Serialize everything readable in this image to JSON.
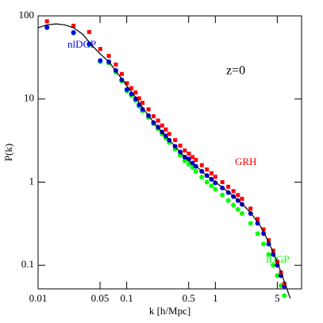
{
  "chart_data": {
    "type": "scatter",
    "xlabel": "k [h/Mpc]",
    "ylabel": "P(k)",
    "annotations": [
      "z=0"
    ],
    "xscale": "log",
    "yscale": "log",
    "xlim": [
      0.01,
      9.4
    ],
    "ylim": [
      0.052,
      100
    ],
    "xticks": [
      0.01,
      0.05,
      0.1,
      0.5,
      1,
      5
    ],
    "yticks": [
      0.1,
      1,
      10,
      100
    ],
    "series": [
      {
        "color": "#000000",
        "marker": "line",
        "x": [
          0.01,
          0.0126,
          0.016,
          0.02,
          0.025,
          0.032,
          0.04,
          0.05,
          0.063,
          0.08,
          0.1,
          0.126,
          0.16,
          0.2,
          0.25,
          0.32,
          0.4,
          0.5,
          0.63,
          0.8,
          1,
          1.26,
          1.6,
          2,
          2.5,
          3.2,
          4,
          5,
          6.3,
          7
        ],
        "values": [
          72,
          78,
          80,
          78,
          72,
          60,
          45,
          35,
          28,
          20,
          14.5,
          10.5,
          7.2,
          5.3,
          4.0,
          3.0,
          2.3,
          1.8,
          1.5,
          1.2,
          1.0,
          0.83,
          0.68,
          0.55,
          0.43,
          0.3,
          0.19,
          0.11,
          0.055,
          0.04
        ]
      },
      {
        "name": "GRH",
        "color": "#ff0000",
        "marker": "square",
        "x": [
          0.0126,
          0.0251,
          0.0377,
          0.0503,
          0.0628,
          0.0754,
          0.088,
          0.1005,
          0.113,
          0.126,
          0.138,
          0.151,
          0.176,
          0.201,
          0.226,
          0.251,
          0.276,
          0.302,
          0.352,
          0.402,
          0.452,
          0.503,
          0.553,
          0.603,
          0.704,
          0.804,
          0.905,
          1.0,
          1.2,
          1.4,
          1.6,
          1.8,
          2.0,
          2.5,
          3.0,
          3.5,
          4.0,
          4.5,
          5.0,
          5.5,
          6.0
        ],
        "values": [
          86,
          76,
          64,
          40,
          33,
          26,
          20,
          15.5,
          13.5,
          12,
          10.2,
          9,
          7.5,
          6.2,
          5.5,
          4.8,
          4.3,
          3.8,
          3.2,
          2.75,
          2.4,
          2.2,
          2.0,
          1.85,
          1.6,
          1.42,
          1.28,
          1.16,
          1.0,
          0.88,
          0.78,
          0.7,
          0.63,
          0.48,
          0.36,
          0.27,
          0.2,
          0.15,
          0.11,
          0.082,
          0.06
        ]
      },
      {
        "name": "nlDGP",
        "color": "#0000ff",
        "marker": "circle",
        "x": [
          0.0126,
          0.0251,
          0.0377,
          0.0503,
          0.0628,
          0.0754,
          0.088,
          0.1005,
          0.113,
          0.126,
          0.138,
          0.151,
          0.176,
          0.201,
          0.226,
          0.251,
          0.276,
          0.302,
          0.352,
          0.402,
          0.452,
          0.503,
          0.553,
          0.603,
          0.704,
          0.804,
          0.905,
          1.0,
          1.2,
          1.4,
          1.6,
          1.8,
          2.0,
          2.5,
          3.0,
          3.5,
          4.0,
          4.5,
          5.0,
          5.5,
          6.0
        ],
        "values": [
          73,
          63,
          46,
          29,
          28,
          22,
          17,
          13,
          11.5,
          10,
          8.5,
          7.5,
          6.3,
          5.2,
          4.6,
          4.0,
          3.6,
          3.2,
          2.7,
          2.3,
          2.0,
          1.9,
          1.7,
          1.55,
          1.35,
          1.2,
          1.08,
          0.98,
          0.85,
          0.75,
          0.67,
          0.6,
          0.54,
          0.42,
          0.32,
          0.24,
          0.18,
          0.135,
          0.1,
          0.075,
          0.056
        ]
      },
      {
        "name": "lDGP",
        "color": "#00ff00",
        "marker": "circle",
        "x": [
          0.0126,
          0.0251,
          0.0377,
          0.0503,
          0.0628,
          0.0754,
          0.088,
          0.1005,
          0.113,
          0.126,
          0.138,
          0.151,
          0.176,
          0.201,
          0.226,
          0.251,
          0.276,
          0.302,
          0.352,
          0.402,
          0.452,
          0.503,
          0.553,
          0.603,
          0.704,
          0.804,
          0.905,
          1.0,
          1.2,
          1.4,
          1.6,
          1.8,
          2.0,
          2.5,
          3.0,
          3.5,
          4.0,
          4.5,
          5.0,
          5.5,
          6.0
        ],
        "values": [
          72,
          62,
          45,
          28,
          27,
          21,
          16.5,
          12.5,
          11,
          9.6,
          8.2,
          7.2,
          6.0,
          5.0,
          4.4,
          3.8,
          3.4,
          3.0,
          2.5,
          2.1,
          1.8,
          1.65,
          1.5,
          1.35,
          1.15,
          1.0,
          0.9,
          0.82,
          0.7,
          0.6,
          0.53,
          0.47,
          0.42,
          0.32,
          0.24,
          0.18,
          0.135,
          0.1,
          0.075,
          0.057,
          0.043
        ]
      }
    ]
  }
}
